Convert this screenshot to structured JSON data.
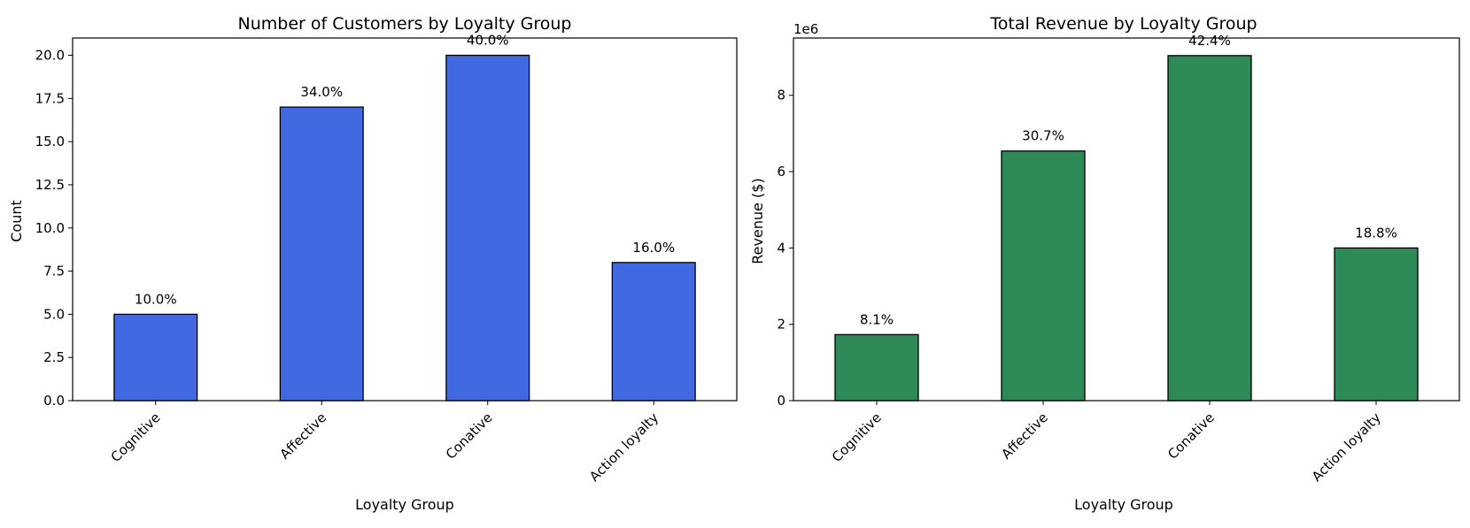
{
  "chart_data": [
    {
      "type": "bar",
      "title": "Number of Customers by Loyalty Group",
      "xlabel": "Loyalty Group",
      "ylabel": "Count",
      "categories": [
        "Cognitive",
        "Affective",
        "Conative",
        "Action loyalty"
      ],
      "values": [
        5,
        17,
        20,
        8
      ],
      "data_labels": [
        "10.0%",
        "34.0%",
        "40.0%",
        "16.0%"
      ],
      "ylim": [
        0,
        21
      ],
      "yticks": [
        0,
        2.5,
        5,
        7.5,
        10,
        12.5,
        15,
        17.5,
        20
      ],
      "ytick_labels": [
        "0.0",
        "2.5",
        "5.0",
        "7.5",
        "10.0",
        "12.5",
        "15.0",
        "17.5",
        "20.0"
      ],
      "y_offset_text": "",
      "bar_color": "#4169e1",
      "edge_color": "#000000",
      "grid": false
    },
    {
      "type": "bar",
      "title": "Total Revenue by Loyalty Group",
      "xlabel": "Loyalty Group",
      "ylabel": "Revenue ($)",
      "categories": [
        "Cognitive",
        "Affective",
        "Conative",
        "Action loyalty"
      ],
      "values": [
        1730000,
        6540000,
        9040000,
        4000000
      ],
      "data_labels": [
        "8.1%",
        "30.7%",
        "42.4%",
        "18.8%"
      ],
      "ylim": [
        0,
        9500000
      ],
      "yticks": [
        0,
        2000000,
        4000000,
        6000000,
        8000000
      ],
      "ytick_labels": [
        "0",
        "2",
        "4",
        "6",
        "8"
      ],
      "y_offset_text": "1e6",
      "bar_color": "#2e8b57",
      "edge_color": "#000000",
      "grid": false
    }
  ]
}
